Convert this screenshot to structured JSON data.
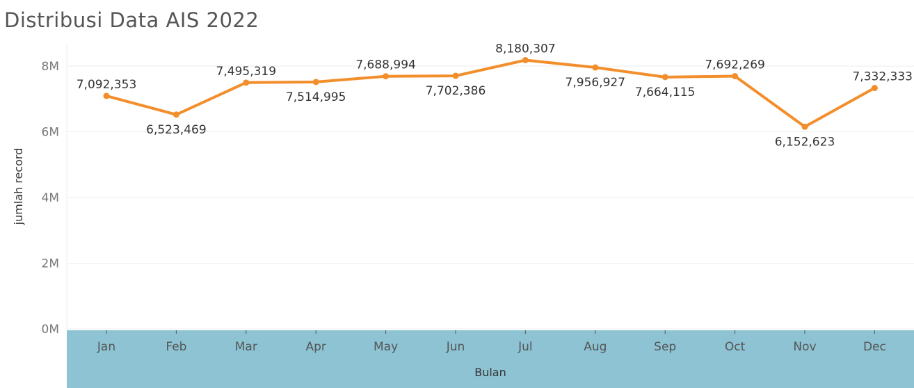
{
  "chart_data": {
    "type": "line",
    "title": "Distribusi Data AIS 2022",
    "xlabel": "Bulan",
    "ylabel": "jumlah record",
    "categories": [
      "Jan",
      "Feb",
      "Mar",
      "Apr",
      "May",
      "Jun",
      "Jul",
      "Aug",
      "Sep",
      "Oct",
      "Nov",
      "Dec"
    ],
    "values": [
      7092353,
      6523469,
      7495319,
      7514995,
      7688994,
      7702386,
      8180307,
      7956927,
      7664115,
      7692269,
      6152623,
      7332333
    ],
    "labels": [
      "7,092,353",
      "6,523,469",
      "7,495,319",
      "7,514,995",
      "7,688,994",
      "7,702,386",
      "8,180,307",
      "7,956,927",
      "7,664,115",
      "7,692,269",
      "6,152,623",
      "7,332,333"
    ],
    "label_positions": [
      "above",
      "below",
      "above",
      "below",
      "above",
      "below",
      "above",
      "below",
      "below",
      "above",
      "below",
      "above"
    ],
    "ylim": [
      0,
      8000000
    ],
    "yticks": [
      0,
      2000000,
      4000000,
      6000000,
      8000000
    ],
    "ytick_labels": [
      "0M",
      "2M",
      "4M",
      "6M",
      "8M"
    ],
    "grid": true,
    "colors": {
      "line": "#f28e2b",
      "axis_band": "#8dc3d3",
      "grid": "#eeeeee"
    }
  }
}
